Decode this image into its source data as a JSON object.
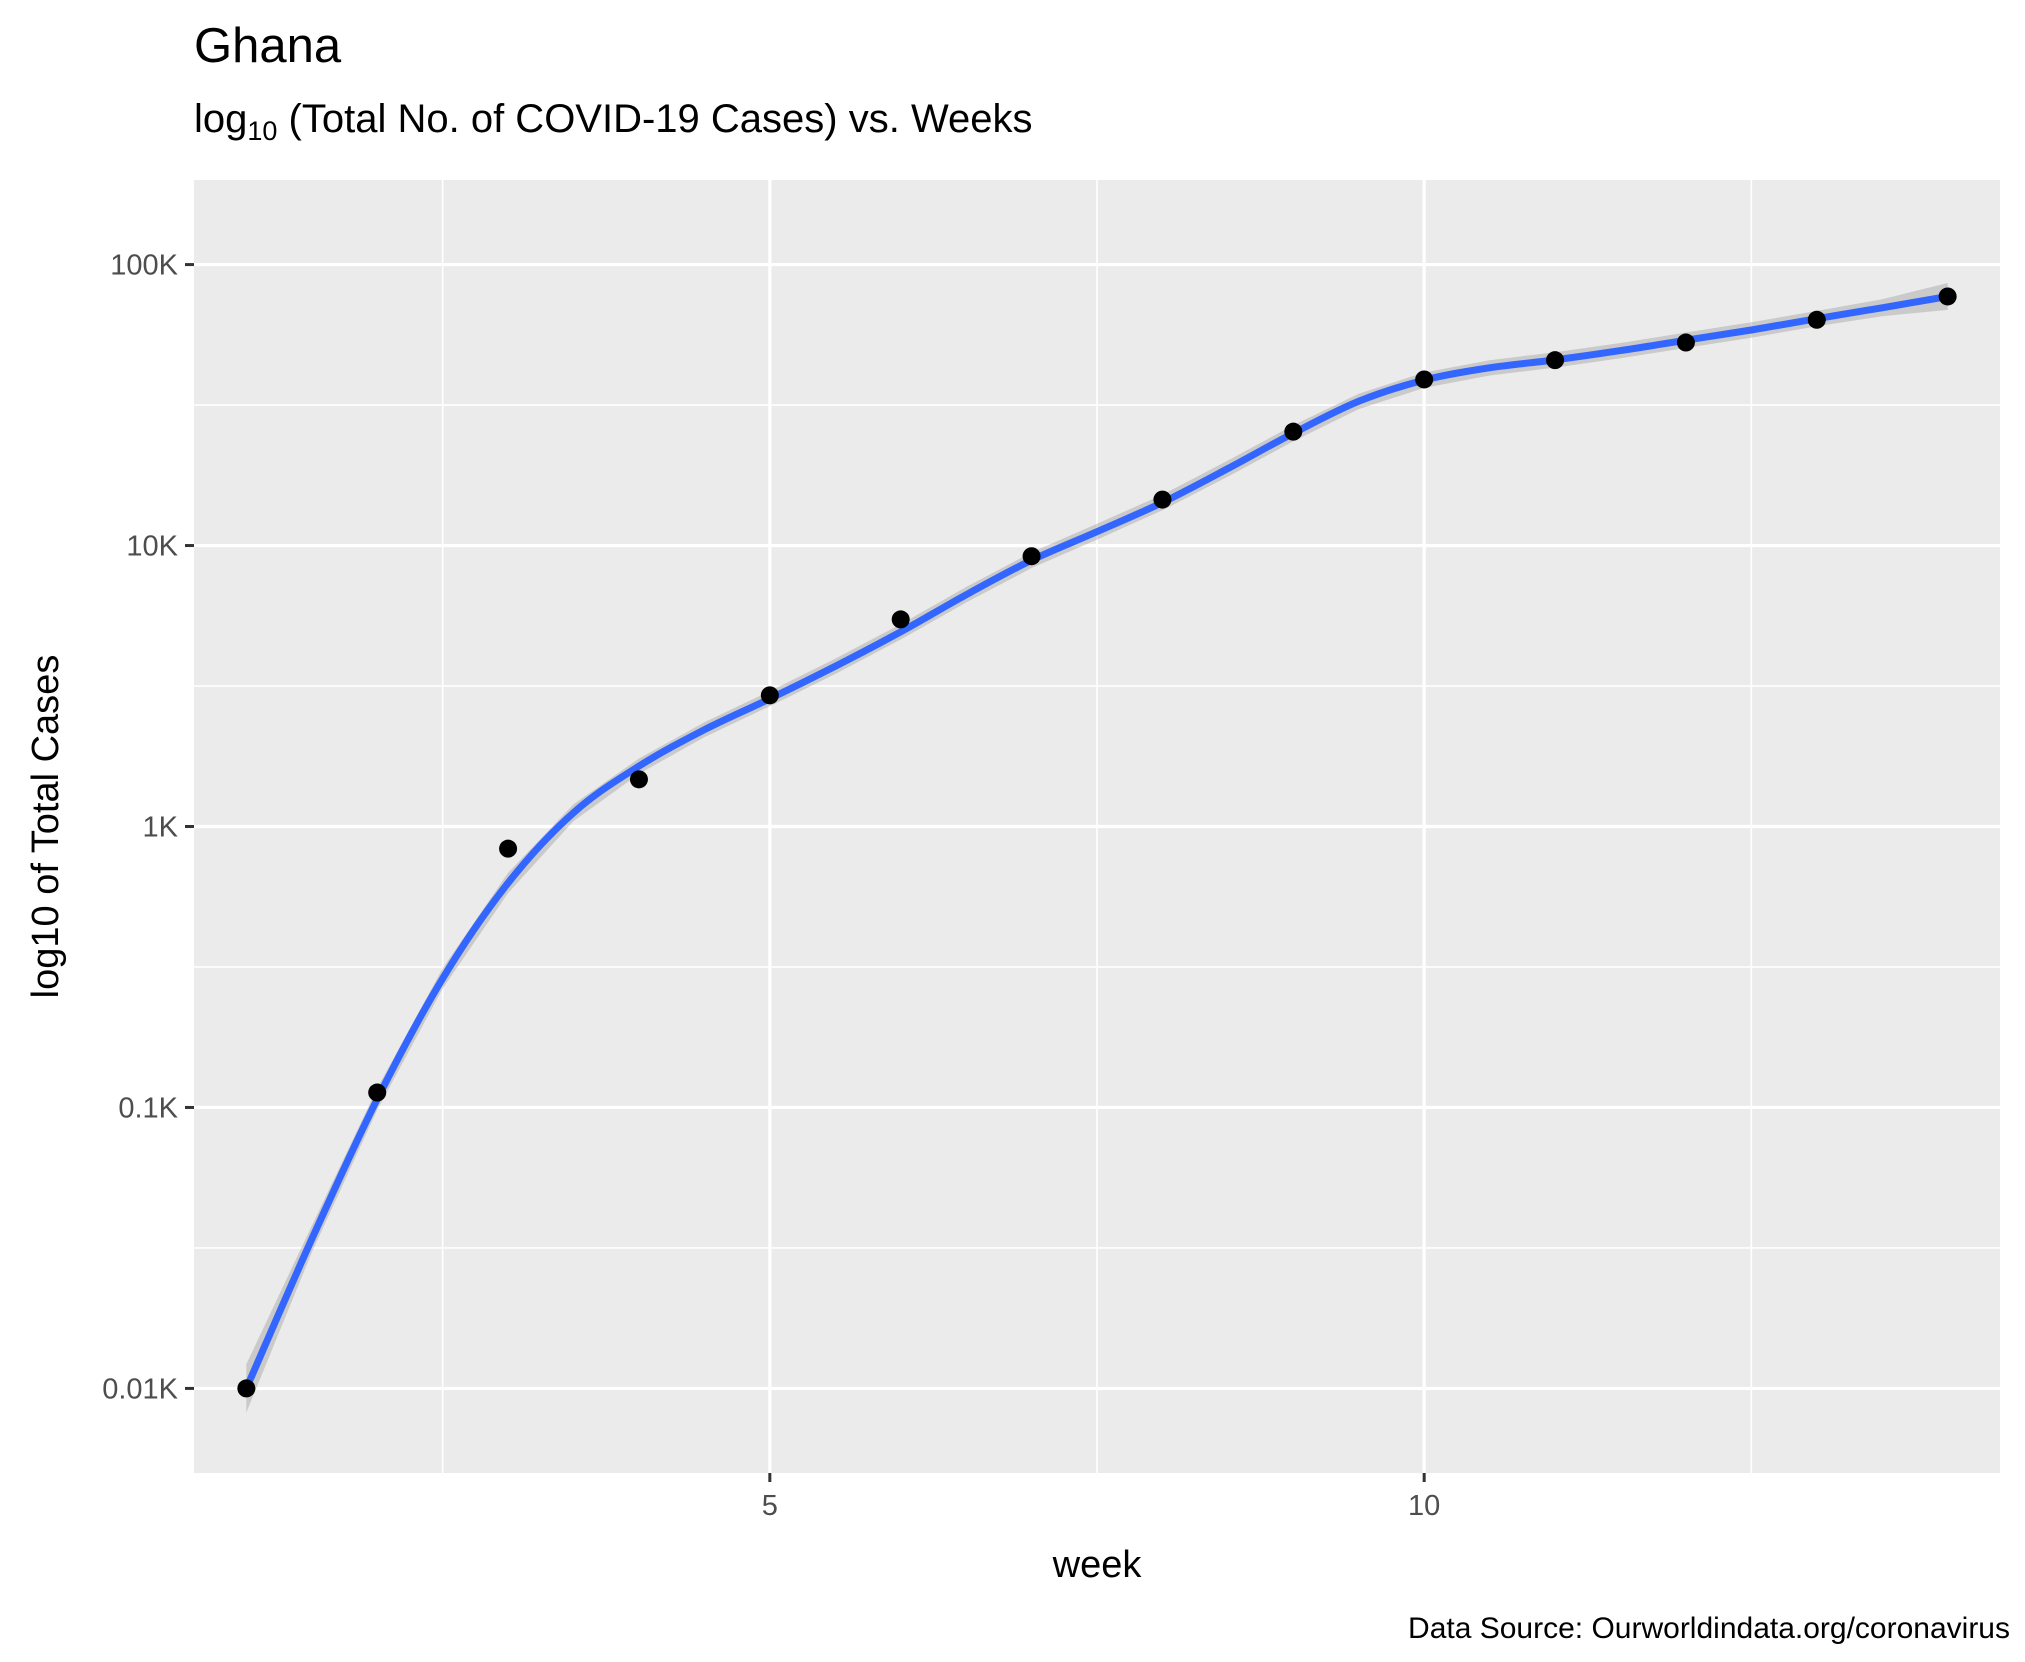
{
  "chart_data": {
    "type": "scatter",
    "title": "Ghana",
    "subtitle": {
      "prefix": "log",
      "subscript": "10",
      "text": " (Total No. of COVID-19 Cases) vs. Weeks"
    },
    "xlabel": "week",
    "ylabel": "log10 of Total Cases",
    "caption": "Data Source: Ourworldindata.org/coronavirus",
    "y_scale": "log10",
    "xlim": [
      0.6,
      14.4
    ],
    "ylim": [
      5,
      200000
    ],
    "x_ticks": [
      {
        "value": 5,
        "label": "5"
      },
      {
        "value": 10,
        "label": "10"
      }
    ],
    "x_minor_ticks": [
      2.5,
      7.5,
      12.5
    ],
    "y_ticks": [
      {
        "value": 10,
        "label": "0.01K"
      },
      {
        "value": 100,
        "label": "0.1K"
      },
      {
        "value": 1000,
        "label": "1K"
      },
      {
        "value": 10000,
        "label": "10K"
      },
      {
        "value": 100000,
        "label": "100K"
      }
    ],
    "grid": true,
    "points": {
      "x": [
        1,
        2,
        3,
        4,
        5,
        6,
        7,
        8,
        9,
        10,
        11,
        12,
        13,
        14
      ],
      "y": [
        10,
        113,
        834,
        1472,
        2930,
        5460,
        9160,
        14570,
        25430,
        39000,
        45700,
        52800,
        63600,
        77000
      ],
      "color": "#000000"
    },
    "smooth": {
      "method": "loess",
      "color": "#3366FF",
      "band_color": "#999999",
      "x": [
        1,
        1.5,
        2,
        2.5,
        3,
        3.5,
        4,
        4.5,
        5,
        5.5,
        6,
        6.5,
        7,
        7.5,
        8,
        8.5,
        9,
        9.5,
        10,
        10.5,
        11,
        11.5,
        12,
        12.5,
        13,
        13.5,
        14
      ],
      "y": [
        10,
        34,
        107,
        288,
        630,
        1120,
        1640,
        2210,
        2850,
        3720,
        4930,
        6680,
        8870,
        11200,
        14230,
        18800,
        25100,
        32600,
        38800,
        42900,
        45800,
        49400,
        53800,
        58500,
        64200,
        70200,
        77000
      ],
      "ymin": [
        8.2,
        30.5,
        98,
        265,
        580,
        1045,
        1540,
        2080,
        2680,
        3490,
        4630,
        6270,
        8320,
        10500,
        13350,
        17600,
        23500,
        30600,
        36400,
        40300,
        43000,
        46400,
        50500,
        54900,
        60300,
        65500,
        69000
      ],
      "ymax": [
        12.2,
        37.9,
        117,
        313,
        684,
        1200,
        1746,
        2350,
        3030,
        3960,
        5250,
        7120,
        9450,
        11950,
        15170,
        20070,
        26800,
        34700,
        41300,
        45650,
        48750,
        52600,
        57300,
        62300,
        68400,
        75300,
        86000
      ]
    }
  }
}
